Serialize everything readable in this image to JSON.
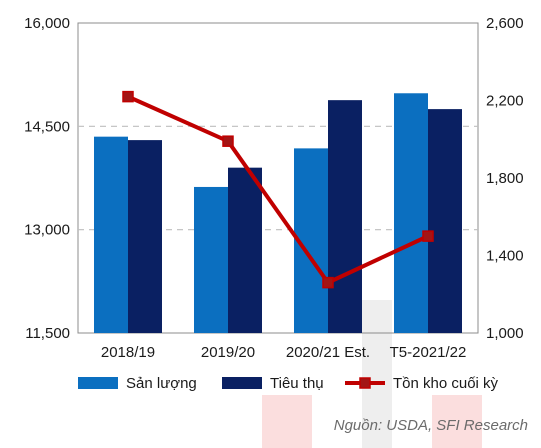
{
  "chart_data": {
    "type": "bar",
    "categories": [
      "2018/19",
      "2019/20",
      "2020/21 Est.",
      "T5-2021/22"
    ],
    "series": [
      {
        "name": "Sản lượng",
        "kind": "bar",
        "axis": "left",
        "color": "#0b6fc0",
        "values": [
          14350,
          13620,
          14180,
          14980
        ]
      },
      {
        "name": "Tiêu thụ",
        "kind": "bar",
        "axis": "left",
        "color": "#0a2062",
        "values": [
          14300,
          13900,
          14880,
          14750
        ]
      },
      {
        "name": "Tồn kho cuối kỳ",
        "kind": "line",
        "axis": "right",
        "color": "#c00000",
        "values": [
          2220,
          1990,
          1260,
          1500
        ]
      }
    ],
    "left_axis": {
      "min": 11500,
      "max": 16000,
      "ticks": [
        "11,500",
        "13,000",
        "14,500",
        "16,000"
      ],
      "tick_values": [
        11500,
        13000,
        14500,
        16000
      ]
    },
    "right_axis": {
      "min": 1000,
      "max": 2600,
      "ticks": [
        "1,000",
        "1,400",
        "1,800",
        "2,200",
        "2,600"
      ],
      "tick_values": [
        1000,
        1400,
        1800,
        2200,
        2600
      ]
    },
    "gridlines": "dashed at 13,000 and 14,500",
    "legend_position": "bottom",
    "source": "Nguồn: USDA, SFI Research"
  }
}
